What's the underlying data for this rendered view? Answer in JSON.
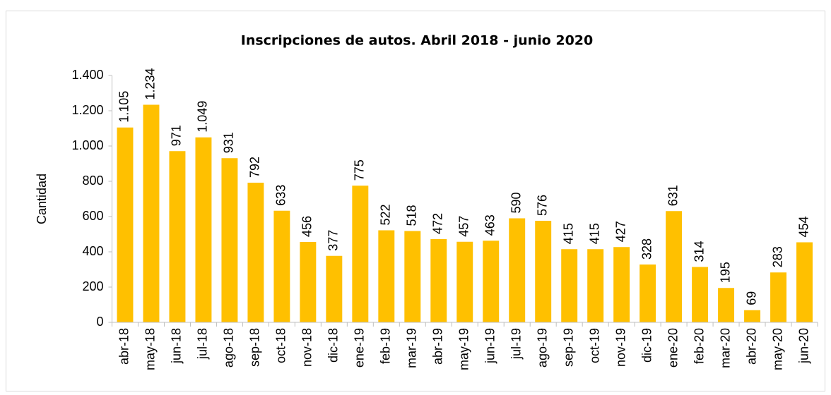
{
  "chart_data": {
    "type": "bar",
    "title": "Inscripciones de autos. Abril 2018 - junio 2020",
    "ylabel": "Cantidad",
    "categories": [
      "abr-18",
      "may-18",
      "jun-18",
      "jul-18",
      "ago-18",
      "sep-18",
      "oct-18",
      "nov-18",
      "dic-18",
      "ene-19",
      "feb-19",
      "mar-19",
      "abr-19",
      "may-19",
      "jun-19",
      "jul-19",
      "ago-19",
      "sep-19",
      "oct-19",
      "nov-19",
      "dic-19",
      "ene-20",
      "feb-20",
      "mar-20",
      "abr-20",
      "may-20",
      "jun-20"
    ],
    "values": [
      1105,
      1234,
      971,
      1049,
      931,
      792,
      633,
      456,
      377,
      775,
      522,
      518,
      472,
      457,
      463,
      590,
      576,
      415,
      415,
      427,
      328,
      631,
      314,
      195,
      69,
      283,
      454
    ],
    "value_labels": [
      "1.105",
      "1.234",
      "971",
      "1.049",
      "931",
      "792",
      "633",
      "456",
      "377",
      "775",
      "522",
      "518",
      "472",
      "457",
      "463",
      "590",
      "576",
      "415",
      "415",
      "427",
      "328",
      "631",
      "314",
      "195",
      "69",
      "283",
      "454"
    ],
    "color": "#ffc000",
    "ylim": [
      0,
      1400
    ],
    "yticks": [
      0,
      200,
      400,
      600,
      800,
      {
        "value": 1000,
        "label": "1.000"
      },
      {
        "value": 1200,
        "label": "1.200"
      },
      {
        "value": 1400,
        "label": "1.400"
      }
    ],
    "grid": false
  }
}
